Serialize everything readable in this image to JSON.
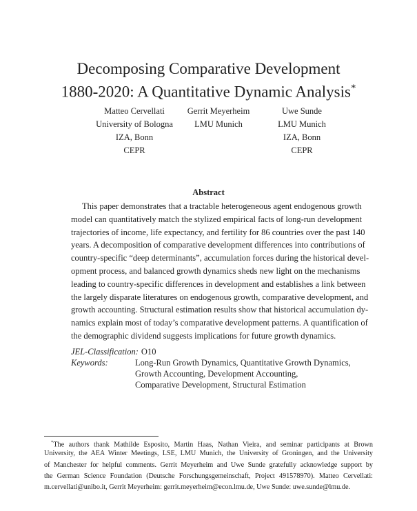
{
  "title": {
    "line1": "Decomposing Comparative Development",
    "line2": "1880-2020: A Quantitative Dynamic Analysis",
    "mark": "*"
  },
  "authors": [
    {
      "name": "Matteo Cervellati",
      "affiliations": [
        "University of Bologna",
        "IZA, Bonn",
        "CEPR"
      ]
    },
    {
      "name": "Gerrit Meyerheim",
      "affiliations": [
        "LMU Munich"
      ]
    },
    {
      "name": "Uwe Sunde",
      "affiliations": [
        "LMU Munich",
        "IZA, Bonn",
        "CEPR"
      ]
    }
  ],
  "abstract": {
    "heading": "Abstract",
    "lines": [
      "This paper demonstrates that a tractable heterogeneous agent endogenous growth",
      "model can quantitatively match the stylized empirical facts of long-run development",
      "trajectories of income, life expectancy, and fertility for 86 countries over the past 140",
      "years. A decomposition of comparative development differences into contributions of",
      "country-specific “deep determinants”, accumulation forces during the historical devel-",
      "opment process, and balanced growth dynamics sheds new light on the mechanisms",
      "leading to country-specific differences in development and establishes a link between",
      "the largely disparate literatures on endogenous growth, comparative development, and",
      "growth accounting. Structural estimation results show that historical accumulation dy-",
      "namics explain most of today’s comparative development patterns. A quantification of",
      "the demographic dividend suggests implications for future growth dynamics."
    ]
  },
  "jel": {
    "label": "JEL-Classification:",
    "value": "O10"
  },
  "keywords": {
    "label": "Keywords:",
    "lines": [
      "Long-Run Growth Dynamics, Quantitative Growth Dynamics,",
      "Growth Accounting, Development Accounting,",
      "Comparative Development, Structural Estimation"
    ]
  },
  "footnote": {
    "mark": "*",
    "lines": [
      "The authors thank Mathilde Esposito, Martin Haas, Nathan Vieira, and seminar participants at Brown",
      "University, the AEA Winter Meetings, LSE, LMU Munich, the University of Groningen, and the University",
      "of Manchester for helpful comments. Gerrit Meyerheim and Uwe Sunde gratefully acknowledge support by",
      "the German Science Foundation (Deutsche Forschungsgemeinschaft, Project 491578970). Matteo Cervellati:",
      "m.cervellati@unibo.it, Gerrit Meyerheim: gerrit.meyerheim@econ.lmu.de, Uwe Sunde: uwe.sunde@lmu.de."
    ]
  }
}
